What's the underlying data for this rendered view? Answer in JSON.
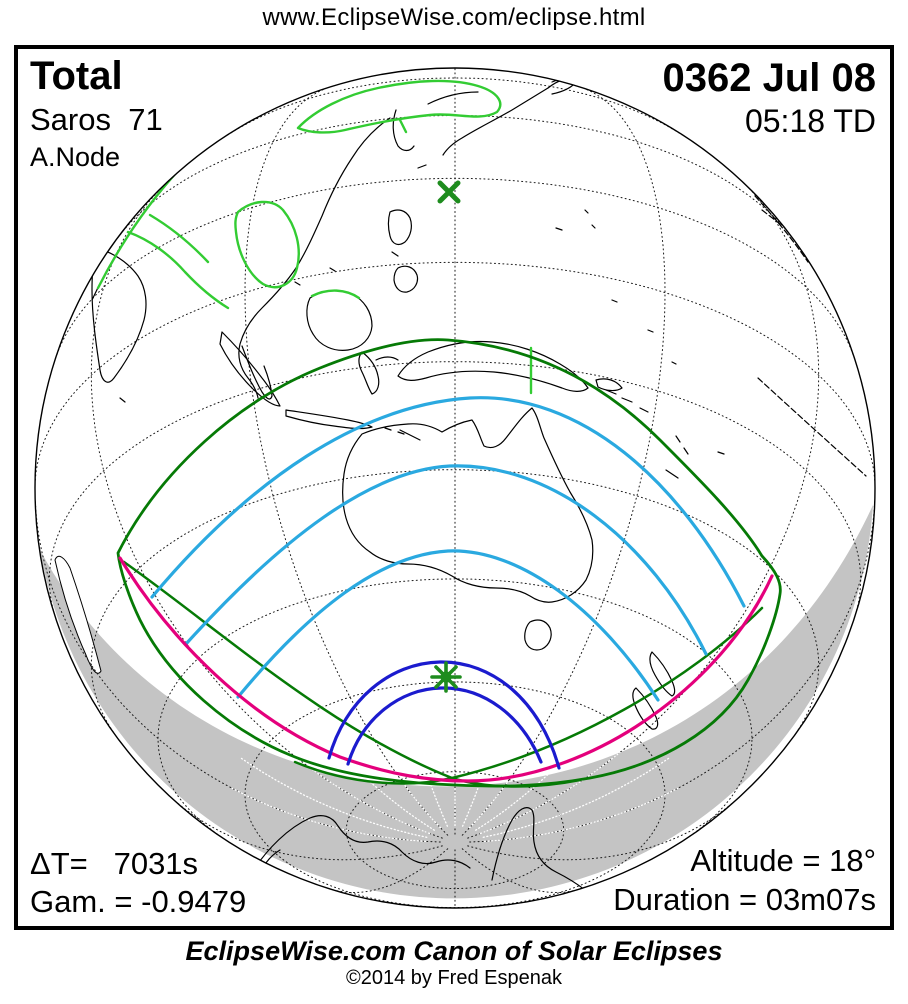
{
  "header": {
    "url": "www.EclipseWise.com/eclipse.html"
  },
  "panel": {
    "eclipse_type": "Total",
    "saros": "Saros  71",
    "node": "A.Node",
    "date": "0362 Jul 08",
    "time": "05:18 TD",
    "delta_t": "ΔT=   7031s",
    "gamma": "Gam. = -0.9479",
    "altitude": "Altitude = 18°",
    "duration": "Duration = 03m07s"
  },
  "footer": {
    "title": "EclipseWise.com Canon of Solar Eclipses",
    "copyright": "©2014 by Fred Espenak"
  },
  "legend_semantics": {
    "asterisk_marker": "point of greatest eclipse",
    "x_marker": "subsolar point",
    "gray_region": "night side of Earth",
    "blue_arcs": "path of total eclipse (umbral limits)",
    "cyan_arcs": "eclipse magnitude curves",
    "green_loop": "penumbral eclipse limits",
    "magenta_curve": "eclipse at sunrise/sunset curve",
    "green_coastlines": "coastlines in eclipse at sunrise region"
  },
  "colors": {
    "penumbra_green": "#067A06",
    "coast_highlight_green": "#33CC33",
    "magnitude_cyan": "#2AA9E0",
    "sunrise_sunset_magenta": "#E4007C",
    "umbra_blue": "#1B1BCE",
    "night_shade_gray": "#C4C4C4",
    "marker_green": "#1E8C1E"
  }
}
